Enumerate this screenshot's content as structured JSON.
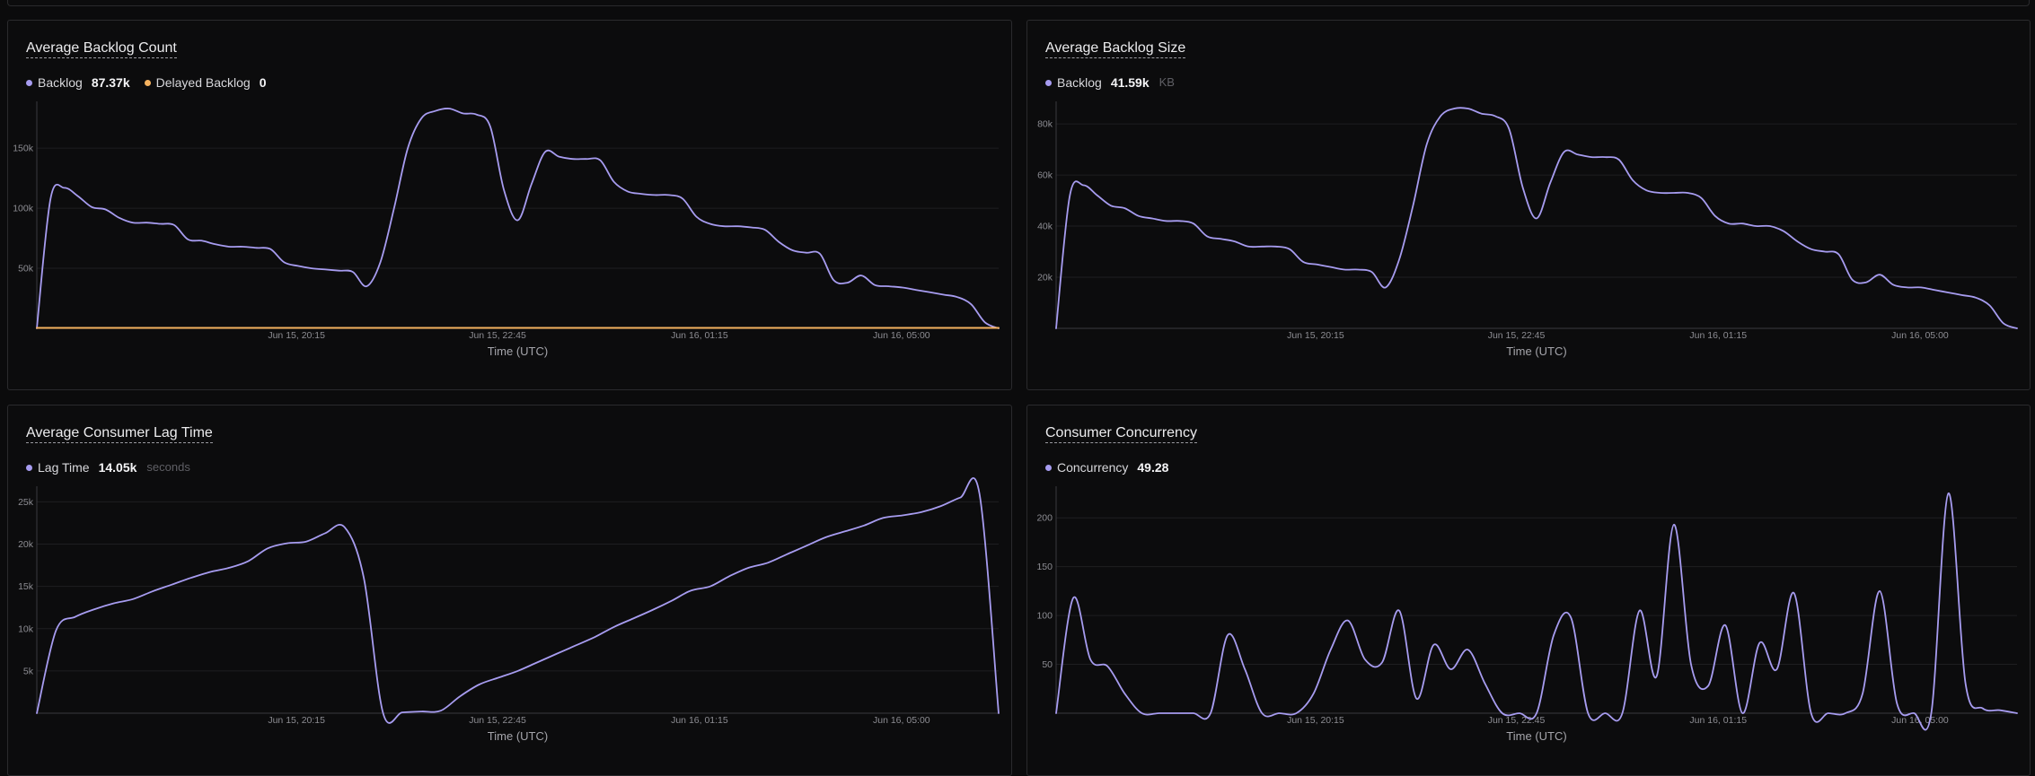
{
  "colors": {
    "purple": "#a79cf0",
    "orange": "#f5b25f",
    "grid": "#1e1e21",
    "axis": "#3a3a3e"
  },
  "x_ticks": [
    "Jun 15, 20:15",
    "Jun 15, 22:45",
    "Jun 16, 01:15",
    "Jun 16, 05:00"
  ],
  "panels": [
    {
      "title": "Average Backlog Count",
      "legend": [
        {
          "name": "Backlog",
          "value": "87.37k",
          "unit": "",
          "color": "#a79cf0"
        },
        {
          "name": "Delayed Backlog",
          "value": "0",
          "unit": "",
          "color": "#f5b25f"
        }
      ],
      "xlabel": "Time (UTC)"
    },
    {
      "title": "Average Backlog Size",
      "legend": [
        {
          "name": "Backlog",
          "value": "41.59k",
          "unit": "KB",
          "color": "#a79cf0"
        }
      ],
      "xlabel": "Time (UTC)"
    },
    {
      "title": "Average Consumer Lag Time",
      "legend": [
        {
          "name": "Lag Time",
          "value": "14.05k",
          "unit": "seconds",
          "color": "#a79cf0"
        }
      ],
      "xlabel": "Time (UTC)"
    },
    {
      "title": "Consumer Concurrency",
      "legend": [
        {
          "name": "Concurrency",
          "value": "49.28",
          "unit": "",
          "color": "#a79cf0"
        }
      ],
      "xlabel": "Time (UTC)"
    }
  ],
  "chart_data": [
    {
      "type": "line",
      "title": "Average Backlog Count",
      "xlabel": "Time (UTC)",
      "ylabel": "",
      "ylim": [
        0,
        183000
      ],
      "y_ticks": [
        50000,
        100000,
        150000
      ],
      "y_tick_labels": [
        "50k",
        "100k",
        "150k"
      ],
      "x_ticks": [
        "Jun 15, 20:15",
        "Jun 15, 22:45",
        "Jun 16, 01:15",
        "Jun 16, 05:00"
      ],
      "grid": true,
      "series": [
        {
          "name": "Backlog",
          "color": "#a79cf0",
          "values": [
            0,
            108000,
            117000,
            110000,
            101000,
            99000,
            92000,
            88000,
            88000,
            87000,
            86000,
            74000,
            73000,
            70000,
            68000,
            68000,
            67000,
            66000,
            55000,
            52000,
            50000,
            49000,
            48000,
            47000,
            35000,
            55000,
            100000,
            150000,
            175000,
            181000,
            183000,
            179000,
            178000,
            168000,
            115000,
            90000,
            120000,
            147000,
            143000,
            141000,
            141000,
            140000,
            122000,
            114000,
            112000,
            111000,
            111000,
            108000,
            93000,
            87000,
            85000,
            85000,
            84000,
            82000,
            72000,
            65000,
            63000,
            62000,
            40000,
            38000,
            44000,
            36000,
            35000,
            34000,
            32000,
            30000,
            28000,
            26000,
            20000,
            5000,
            0
          ]
        },
        {
          "name": "Delayed Backlog",
          "color": "#f5b25f",
          "values": [
            0,
            0,
            0,
            0,
            0,
            0,
            0,
            0,
            0,
            0,
            0,
            0,
            0,
            0,
            0,
            0,
            0,
            0,
            0,
            0,
            0,
            0,
            0,
            0,
            0,
            0,
            0,
            0,
            0,
            0,
            0,
            0,
            0,
            0,
            0,
            0,
            0,
            0,
            0,
            0,
            0,
            0,
            0,
            0,
            0,
            0,
            0,
            0,
            0,
            0,
            0,
            0,
            0,
            0,
            0,
            0,
            0,
            0,
            0,
            0,
            0,
            0,
            0,
            0,
            0,
            0,
            0,
            0,
            0,
            0,
            0
          ]
        }
      ]
    },
    {
      "type": "line",
      "title": "Average Backlog Size",
      "xlabel": "Time (UTC)",
      "ylabel": "",
      "ylim": [
        0,
        86000
      ],
      "y_ticks": [
        20000,
        40000,
        60000,
        80000
      ],
      "y_tick_labels": [
        "20k",
        "40k",
        "60k",
        "80k"
      ],
      "x_ticks": [
        "Jun 15, 20:15",
        "Jun 15, 22:45",
        "Jun 16, 01:15",
        "Jun 16, 05:00"
      ],
      "grid": true,
      "series": [
        {
          "name": "Backlog",
          "color": "#a79cf0",
          "values": [
            0,
            52000,
            56000,
            52000,
            48000,
            47000,
            44000,
            43000,
            42000,
            42000,
            41000,
            36000,
            35000,
            34000,
            32000,
            32000,
            32000,
            31000,
            26000,
            25000,
            24000,
            23000,
            23000,
            22000,
            16000,
            27000,
            48000,
            72000,
            83000,
            86000,
            86000,
            84000,
            83000,
            78000,
            55000,
            43000,
            57000,
            69000,
            68000,
            67000,
            67000,
            66000,
            58000,
            54000,
            53000,
            53000,
            53000,
            51000,
            44000,
            41000,
            41000,
            40000,
            40000,
            38000,
            34000,
            31000,
            30000,
            29000,
            19000,
            18000,
            21000,
            17000,
            16000,
            16000,
            15000,
            14000,
            13000,
            12000,
            9000,
            2000,
            0
          ]
        }
      ]
    },
    {
      "type": "line",
      "title": "Average Consumer Lag Time",
      "xlabel": "Time (UTC)",
      "ylabel": "",
      "ylim": [
        0,
        26000
      ],
      "y_ticks": [
        5000,
        10000,
        15000,
        20000,
        25000
      ],
      "y_tick_labels": [
        "5k",
        "10k",
        "15k",
        "20k",
        "25k"
      ],
      "x_ticks": [
        "Jun 15, 20:15",
        "Jun 15, 22:45",
        "Jun 16, 01:15",
        "Jun 16, 05:00"
      ],
      "grid": true,
      "series": [
        {
          "name": "Lag Time",
          "color": "#a79cf0",
          "values": [
            0,
            9800,
            11400,
            12300,
            13000,
            13500,
            14400,
            15200,
            16000,
            16700,
            17200,
            18000,
            19500,
            20100,
            20300,
            21300,
            22000,
            16000,
            0,
            100,
            200,
            300,
            2000,
            3400,
            4200,
            5000,
            6000,
            7000,
            8000,
            9000,
            10200,
            11200,
            12200,
            13300,
            14500,
            15000,
            16200,
            17200,
            17800,
            18800,
            19800,
            20800,
            21500,
            22200,
            23100,
            23400,
            23800,
            24500,
            25500,
            26000,
            0
          ]
        }
      ]
    },
    {
      "type": "line",
      "title": "Consumer Concurrency",
      "xlabel": "Time (UTC)",
      "ylabel": "",
      "ylim": [
        0,
        225
      ],
      "y_ticks": [
        50,
        100,
        150,
        200
      ],
      "y_tick_labels": [
        "50",
        "100",
        "150",
        "200"
      ],
      "x_ticks": [
        "Jun 15, 20:15",
        "Jun 15, 22:45",
        "Jun 16, 01:15",
        "Jun 16, 05:00"
      ],
      "grid": true,
      "series": [
        {
          "name": "Concurrency",
          "color": "#a79cf0",
          "values": [
            0,
            118,
            55,
            48,
            20,
            0,
            0,
            0,
            0,
            0,
            80,
            45,
            0,
            0,
            0,
            20,
            65,
            95,
            55,
            52,
            105,
            15,
            70,
            45,
            65,
            30,
            0,
            0,
            0,
            80,
            98,
            0,
            0,
            0,
            105,
            38,
            193,
            50,
            28,
            90,
            0,
            72,
            45,
            123,
            0,
            0,
            0,
            20,
            125,
            10,
            0,
            0,
            225,
            30,
            5,
            3,
            0
          ]
        }
      ]
    }
  ]
}
